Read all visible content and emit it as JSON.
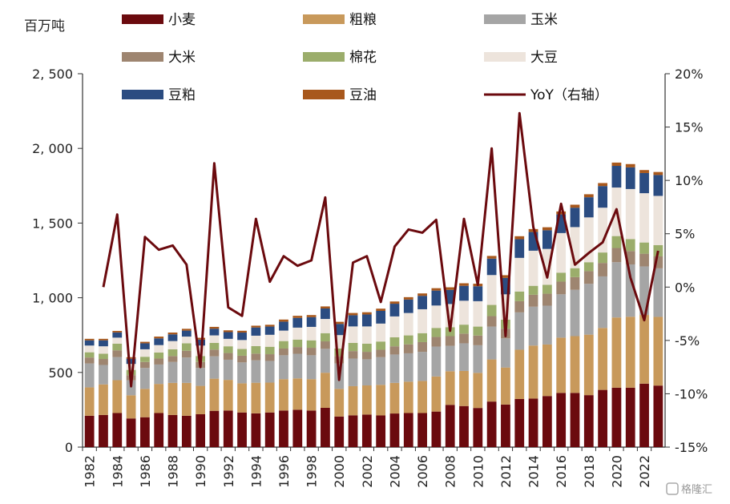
{
  "chart_data": {
    "type": "bar",
    "stacked": true,
    "x": [
      1982,
      1983,
      1984,
      1985,
      1986,
      1987,
      1988,
      1989,
      1990,
      1991,
      1992,
      1993,
      1994,
      1995,
      1996,
      1997,
      1998,
      1999,
      2000,
      2001,
      2002,
      2003,
      2004,
      2005,
      2006,
      2007,
      2008,
      2009,
      2010,
      2011,
      2012,
      2013,
      2014,
      2015,
      2016,
      2017,
      2018,
      2019,
      2020,
      2021,
      2022,
      2023
    ],
    "x_tick_labels": [
      "1982",
      "1984",
      "1986",
      "1988",
      "1990",
      "1992",
      "1994",
      "1996",
      "1998",
      "2000",
      "2002",
      "2004",
      "2006",
      "2008",
      "2010",
      "2012",
      "2014",
      "2016",
      "2018",
      "2020",
      "2022"
    ],
    "y_left": {
      "unit": "百万吨",
      "range": [
        0,
        2500
      ],
      "ticks": [
        0,
        500,
        1000,
        1500,
        2000,
        2500
      ],
      "tick_labels": [
        "0",
        "500",
        "1, 000",
        "1, 500",
        "2, 000",
        "2, 500"
      ]
    },
    "y_right": {
      "range": [
        -15,
        20
      ],
      "ticks": [
        -15,
        -10,
        -5,
        0,
        5,
        10,
        15,
        20
      ],
      "tick_labels": [
        "-15%",
        "-10%",
        "-5%",
        "0%",
        "5%",
        "10%",
        "15%",
        "20%"
      ]
    },
    "series": [
      {
        "name": "小麦",
        "color": "#6b0a0e",
        "values": [
          210,
          215,
          228,
          192,
          200,
          228,
          215,
          210,
          220,
          243,
          245,
          232,
          226,
          232,
          245,
          250,
          245,
          263,
          205,
          213,
          218,
          212,
          225,
          228,
          228,
          238,
          283,
          275,
          262,
          305,
          285,
          322,
          325,
          342,
          363,
          363,
          348,
          383,
          398,
          398,
          425,
          412
        ]
      },
      {
        "name": "粗粮",
        "color": "#c8995b",
        "values": [
          190,
          205,
          220,
          155,
          190,
          195,
          215,
          220,
          190,
          215,
          205,
          195,
          205,
          200,
          210,
          210,
          210,
          235,
          185,
          195,
          195,
          205,
          205,
          210,
          215,
          235,
          225,
          235,
          235,
          282,
          248,
          330,
          355,
          345,
          370,
          380,
          405,
          415,
          470,
          475,
          460,
          460
        ]
      },
      {
        "name": "玉米",
        "color": "#a5a5a5",
        "values": [
          160,
          130,
          155,
          100,
          140,
          130,
          140,
          170,
          120,
          150,
          135,
          140,
          150,
          145,
          160,
          165,
          160,
          160,
          170,
          185,
          175,
          185,
          190,
          190,
          195,
          200,
          170,
          185,
          185,
          220,
          195,
          250,
          260,
          260,
          290,
          310,
          340,
          345,
          370,
          350,
          325,
          325
        ]
      },
      {
        "name": "大米",
        "color": "#9e8570",
        "values": [
          40,
          40,
          45,
          35,
          40,
          40,
          40,
          45,
          40,
          45,
          45,
          45,
          45,
          45,
          45,
          45,
          50,
          50,
          50,
          50,
          50,
          50,
          55,
          60,
          65,
          65,
          65,
          65,
          65,
          70,
          65,
          75,
          80,
          80,
          85,
          85,
          85,
          90,
          95,
          90,
          85,
          80
        ]
      },
      {
        "name": "棉花",
        "color": "#9bad6b",
        "values": [
          35,
          35,
          45,
          35,
          35,
          40,
          45,
          50,
          40,
          45,
          45,
          45,
          50,
          50,
          50,
          50,
          50,
          55,
          50,
          55,
          55,
          55,
          60,
          60,
          60,
          60,
          60,
          60,
          60,
          75,
          60,
          65,
          60,
          60,
          60,
          60,
          60,
          70,
          80,
          80,
          75,
          75
        ]
      },
      {
        "name": "大豆",
        "color": "#ede4dc",
        "values": [
          45,
          50,
          40,
          40,
          50,
          50,
          55,
          45,
          70,
          50,
          50,
          60,
          70,
          80,
          70,
          80,
          90,
          95,
          90,
          110,
          115,
          120,
          140,
          150,
          160,
          150,
          155,
          160,
          170,
          200,
          170,
          225,
          235,
          240,
          265,
          275,
          300,
          300,
          325,
          335,
          330,
          330
        ]
      },
      {
        "name": "豆粕",
        "color": "#2b4c81",
        "values": [
          35,
          40,
          35,
          35,
          40,
          45,
          45,
          40,
          40,
          45,
          45,
          50,
          55,
          55,
          60,
          65,
          65,
          70,
          75,
          75,
          80,
          85,
          85,
          90,
          90,
          100,
          95,
          100,
          100,
          110,
          110,
          125,
          125,
          125,
          125,
          130,
          135,
          145,
          145,
          145,
          135,
          140
        ]
      },
      {
        "name": "豆油",
        "color": "#a8581c",
        "values": [
          10,
          10,
          10,
          10,
          10,
          12,
          12,
          12,
          12,
          12,
          12,
          12,
          12,
          12,
          14,
          14,
          14,
          14,
          14,
          15,
          15,
          15,
          15,
          16,
          16,
          16,
          17,
          17,
          17,
          18,
          18,
          20,
          20,
          20,
          20,
          20,
          20,
          20,
          22,
          22,
          20,
          20
        ]
      }
    ],
    "line": {
      "name": "YoY (右轴)",
      "axis": "right",
      "color": "#6b0a0e",
      "x": [
        1983,
        1984,
        1985,
        1986,
        1987,
        1988,
        1989,
        1990,
        1991,
        1992,
        1993,
        1994,
        1995,
        1996,
        1997,
        1998,
        1999,
        2000,
        2001,
        2002,
        2003,
        2004,
        2005,
        2006,
        2007,
        2008,
        2009,
        2010,
        2011,
        2012,
        2013,
        2014,
        2015,
        2016,
        2017,
        2018,
        2019,
        2020,
        2021,
        2022,
        2023
      ],
      "values": [
        0,
        6.8,
        -9.3,
        4.7,
        3.5,
        3.9,
        2.1,
        -7.5,
        11.6,
        -1.9,
        -2.7,
        6.4,
        0.5,
        2.9,
        2.0,
        2.5,
        8.4,
        -8.7,
        2.3,
        2.9,
        -1.4,
        3.8,
        5.4,
        5.1,
        6.3,
        -4.1,
        6.4,
        0.2,
        13.0,
        -4.6,
        16.3,
        5.6,
        0.9,
        7.8,
        2.1,
        3.2,
        4.2,
        7.3,
        0.9,
        -3.1,
        3.4
      ]
    }
  },
  "legend": [
    {
      "label": "小麦",
      "kind": "bar",
      "color": "#6b0a0e"
    },
    {
      "label": "粗粮",
      "kind": "bar",
      "color": "#c8995b"
    },
    {
      "label": "玉米",
      "kind": "bar",
      "color": "#a5a5a5"
    },
    {
      "label": "大米",
      "kind": "bar",
      "color": "#9e8570"
    },
    {
      "label": "棉花",
      "kind": "bar",
      "color": "#9bad6b"
    },
    {
      "label": "大豆",
      "kind": "bar",
      "color": "#ede4dc"
    },
    {
      "label": "豆粕",
      "kind": "bar",
      "color": "#2b4c81"
    },
    {
      "label": "豆油",
      "kind": "bar",
      "color": "#a8581c"
    },
    {
      "label": "YoY（右轴）",
      "kind": "line",
      "color": "#6b0a0e"
    }
  ],
  "watermark": "格隆汇"
}
